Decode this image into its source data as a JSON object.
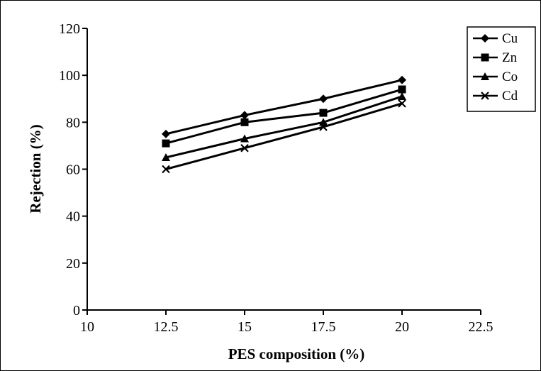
{
  "chart_data": {
    "type": "line",
    "title": "",
    "xlabel": "PES composition (%)",
    "ylabel": "Rejection (%)",
    "xlim": [
      10,
      22.5
    ],
    "ylim": [
      0,
      120
    ],
    "xticks": [
      10,
      12.5,
      15,
      17.5,
      20,
      22.5
    ],
    "yticks": [
      0,
      20,
      40,
      60,
      80,
      100,
      120
    ],
    "x": [
      12.5,
      15,
      17.5,
      20
    ],
    "grid": false,
    "legend_position": "top-right",
    "series": [
      {
        "name": "Cu",
        "marker": "diamond",
        "values": [
          75,
          83,
          90,
          98
        ]
      },
      {
        "name": "Zn",
        "marker": "square",
        "values": [
          71,
          80,
          84,
          94
        ]
      },
      {
        "name": "Co",
        "marker": "triangle",
        "values": [
          65,
          73,
          80,
          91
        ]
      },
      {
        "name": "Cd",
        "marker": "x",
        "values": [
          60,
          69,
          78,
          88
        ]
      }
    ],
    "line_color": "#000000"
  }
}
